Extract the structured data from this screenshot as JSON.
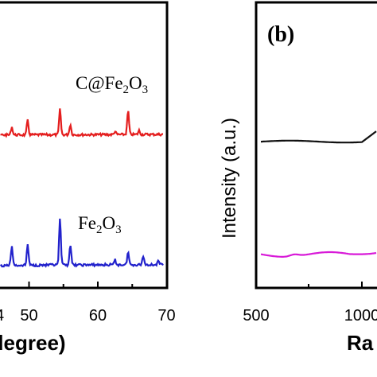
{
  "chart_data": [
    {
      "type": "line",
      "xlabel": "(degree)",
      "x_ticks": [
        50,
        60,
        70
      ],
      "xlim": [
        36,
        70
      ],
      "series": [
        {
          "name": "C@Fe₂O₃",
          "color": "#e41e1e",
          "peaks": [
            {
              "x": 47.5,
              "h": 10
            },
            {
              "x": 49.8,
              "h": 18
            },
            {
              "x": 54.5,
              "h": 32
            },
            {
              "x": 56.0,
              "h": 13
            },
            {
              "x": 62.5,
              "h": 4
            },
            {
              "x": 64.4,
              "h": 30
            },
            {
              "x": 66.0,
              "h": 5
            }
          ]
        },
        {
          "name": "Fe₂O₃",
          "color": "#2222cc",
          "peaks": [
            {
              "x": 47.5,
              "h": 24
            },
            {
              "x": 49.8,
              "h": 26
            },
            {
              "x": 54.5,
              "h": 58
            },
            {
              "x": 56.0,
              "h": 26
            },
            {
              "x": 62.5,
              "h": 6
            },
            {
              "x": 64.4,
              "h": 16
            },
            {
              "x": 66.6,
              "h": 11
            },
            {
              "x": 68.8,
              "h": 4
            }
          ]
        }
      ]
    },
    {
      "type": "line",
      "panel_label": "(b)",
      "ylabel": "Intensity (a.u.)",
      "xlabel": "Ra",
      "x_ticks": [
        500,
        1000
      ],
      "x_tick_labels": [
        "500",
        "1000"
      ],
      "series": [
        {
          "color": "#111111"
        },
        {
          "color": "#d81ad8"
        }
      ]
    }
  ]
}
